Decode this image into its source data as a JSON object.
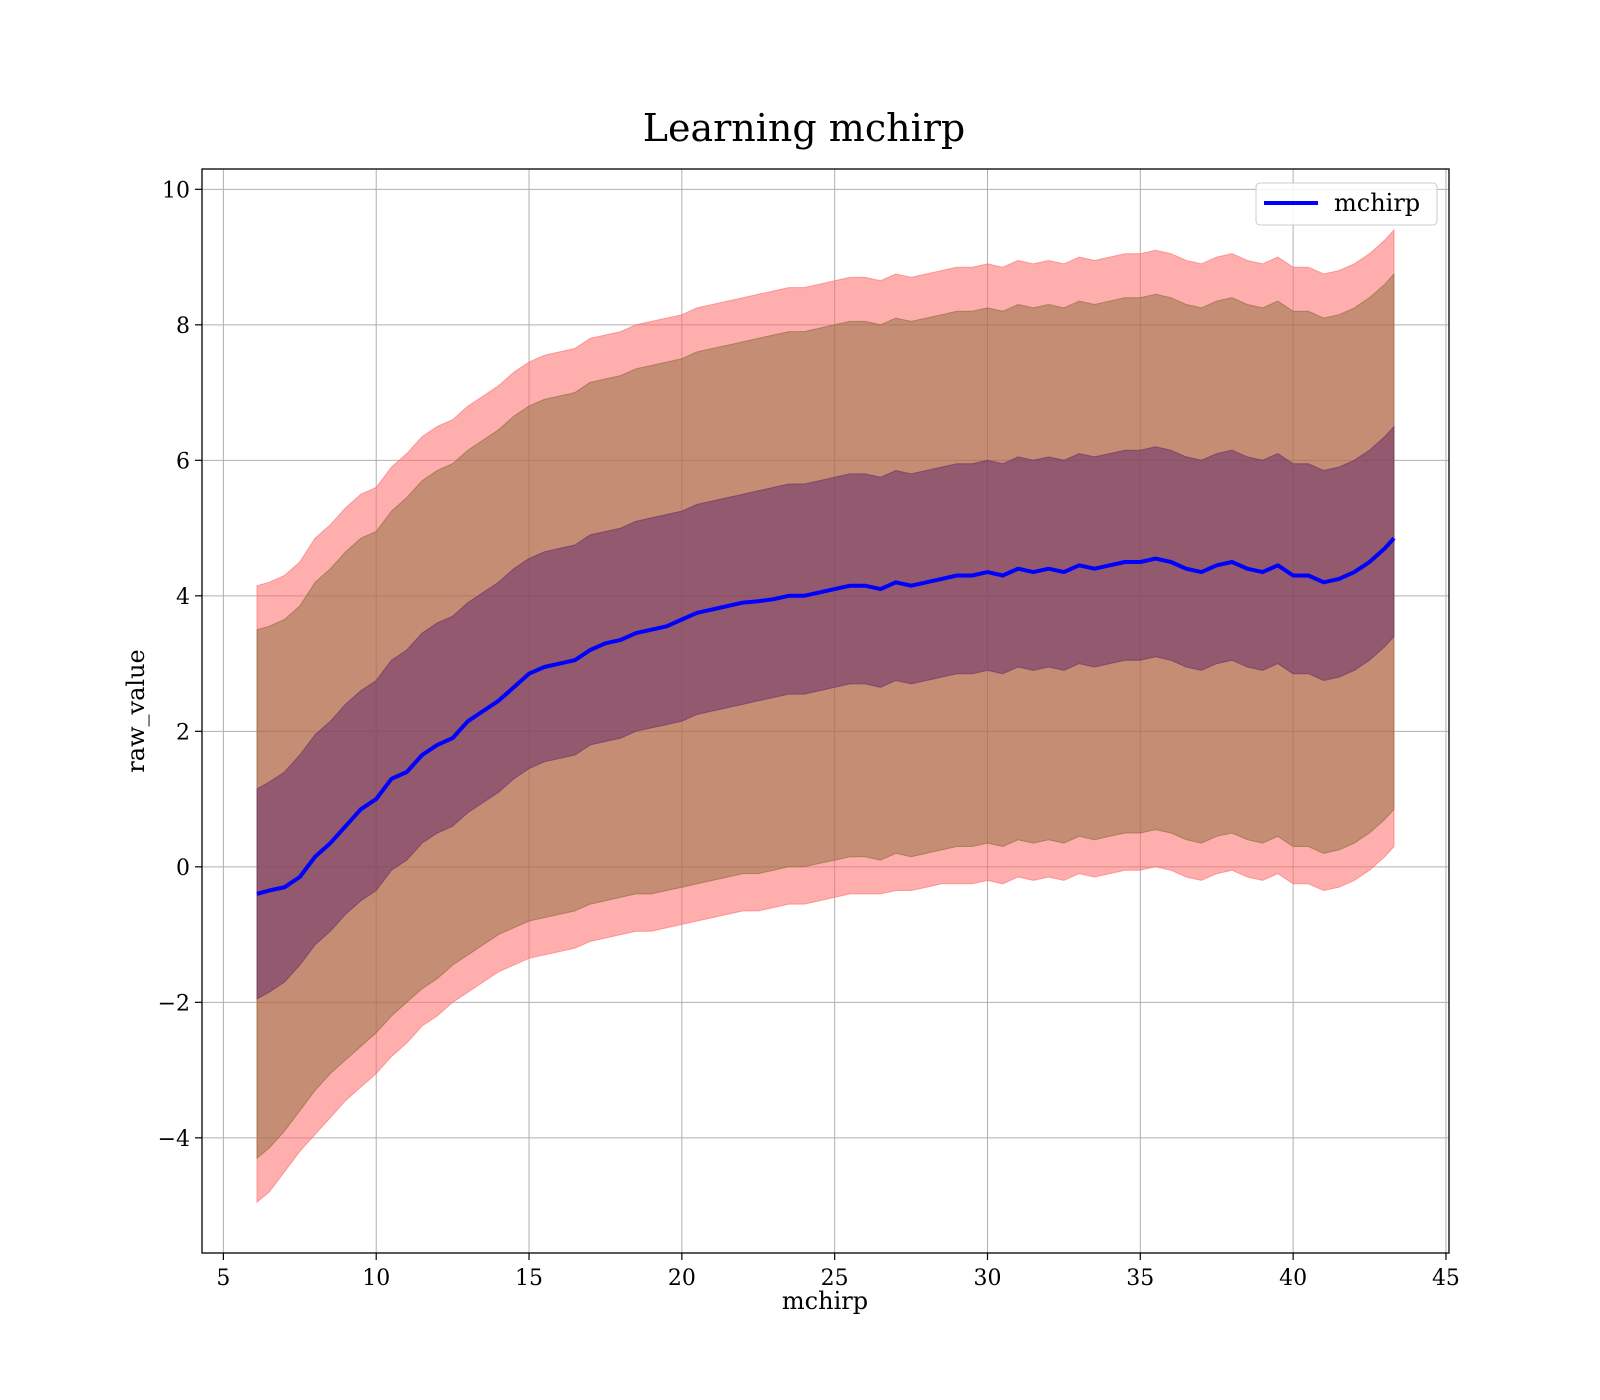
{
  "chart_data": {
    "type": "line",
    "title": "Learning mchirp",
    "xlabel": "mchirp",
    "ylabel": "raw_value",
    "xlim": [
      4.3,
      45.1
    ],
    "ylim": [
      -5.7,
      10.3
    ],
    "xticks": [
      5,
      10,
      15,
      20,
      25,
      30,
      35,
      40,
      45
    ],
    "xtick_labels": [
      "5",
      "10",
      "15",
      "20",
      "25",
      "30",
      "35",
      "40",
      "45"
    ],
    "yticks": [
      -4,
      -2,
      0,
      2,
      4,
      6,
      8,
      10
    ],
    "ytick_labels": [
      "−4",
      "−2",
      "0",
      "2",
      "4",
      "6",
      "8",
      "10"
    ],
    "grid": true,
    "legend_position": "upper right",
    "legend_entries": [
      "mchirp"
    ],
    "colors": {
      "line": "#0000ff",
      "band_outer": "#ff6b6b",
      "band_middle": "#8b6b3a",
      "band_inner": "#6a2f6a",
      "grid": "#b0b0b0"
    },
    "series": [
      {
        "name": "mchirp",
        "x": [
          6.1,
          6.5,
          7.0,
          7.5,
          8.0,
          8.5,
          9.0,
          9.5,
          10.0,
          10.5,
          11.0,
          11.5,
          12.0,
          12.5,
          13.0,
          13.5,
          14.0,
          14.5,
          15.0,
          15.5,
          16.0,
          16.5,
          17.0,
          17.5,
          18.0,
          18.5,
          19.0,
          19.5,
          20.0,
          20.5,
          21.0,
          21.5,
          22.0,
          22.5,
          23.0,
          23.5,
          24.0,
          24.5,
          25.0,
          25.5,
          26.0,
          26.5,
          27.0,
          27.5,
          28.0,
          28.5,
          29.0,
          29.5,
          30.0,
          30.5,
          31.0,
          31.5,
          32.0,
          32.5,
          33.0,
          33.5,
          34.0,
          34.5,
          35.0,
          35.5,
          36.0,
          36.5,
          37.0,
          37.5,
          38.0,
          38.5,
          39.0,
          39.5,
          40.0,
          40.5,
          41.0,
          41.5,
          42.0,
          42.5,
          43.0,
          43.3
        ],
        "y": [
          -0.4,
          -0.35,
          -0.3,
          -0.15,
          0.15,
          0.35,
          0.6,
          0.85,
          1.0,
          1.3,
          1.4,
          1.65,
          1.8,
          1.9,
          2.15,
          2.3,
          2.45,
          2.65,
          2.85,
          2.95,
          3.0,
          3.05,
          3.2,
          3.3,
          3.35,
          3.45,
          3.5,
          3.55,
          3.65,
          3.75,
          3.8,
          3.85,
          3.9,
          3.92,
          3.95,
          4.0,
          4.0,
          4.05,
          4.1,
          4.15,
          4.15,
          4.1,
          4.2,
          4.15,
          4.2,
          4.25,
          4.3,
          4.3,
          4.35,
          4.3,
          4.4,
          4.35,
          4.4,
          4.35,
          4.45,
          4.4,
          4.45,
          4.5,
          4.5,
          4.55,
          4.5,
          4.4,
          4.35,
          4.45,
          4.5,
          4.4,
          4.35,
          4.45,
          4.3,
          4.3,
          4.2,
          4.25,
          4.35,
          4.5,
          4.7,
          4.85
        ]
      }
    ],
    "bands": [
      {
        "sigma": "outer",
        "lower": [
          -4.95,
          -4.8,
          -4.5,
          -4.2,
          -3.95,
          -3.7,
          -3.45,
          -3.25,
          -3.05,
          -2.8,
          -2.6,
          -2.35,
          -2.2,
          -2.0,
          -1.85,
          -1.7,
          -1.55,
          -1.45,
          -1.35,
          -1.3,
          -1.25,
          -1.2,
          -1.1,
          -1.05,
          -1.0,
          -0.95,
          -0.95,
          -0.9,
          -0.85,
          -0.8,
          -0.75,
          -0.7,
          -0.65,
          -0.65,
          -0.6,
          -0.55,
          -0.55,
          -0.5,
          -0.45,
          -0.4,
          -0.4,
          -0.4,
          -0.35,
          -0.35,
          -0.3,
          -0.25,
          -0.25,
          -0.25,
          -0.2,
          -0.25,
          -0.15,
          -0.2,
          -0.15,
          -0.2,
          -0.1,
          -0.15,
          -0.1,
          -0.05,
          -0.05,
          0.0,
          -0.05,
          -0.15,
          -0.2,
          -0.1,
          -0.05,
          -0.15,
          -0.2,
          -0.1,
          -0.25,
          -0.25,
          -0.35,
          -0.3,
          -0.2,
          -0.05,
          0.15,
          0.3
        ],
        "upper": [
          4.15,
          4.2,
          4.3,
          4.5,
          4.85,
          5.05,
          5.3,
          5.5,
          5.6,
          5.9,
          6.1,
          6.35,
          6.5,
          6.6,
          6.8,
          6.95,
          7.1,
          7.3,
          7.45,
          7.55,
          7.6,
          7.65,
          7.8,
          7.85,
          7.9,
          8.0,
          8.05,
          8.1,
          8.15,
          8.25,
          8.3,
          8.35,
          8.4,
          8.45,
          8.5,
          8.55,
          8.55,
          8.6,
          8.65,
          8.7,
          8.7,
          8.65,
          8.75,
          8.7,
          8.75,
          8.8,
          8.85,
          8.85,
          8.9,
          8.85,
          8.95,
          8.9,
          8.95,
          8.9,
          9.0,
          8.95,
          9.0,
          9.05,
          9.05,
          9.1,
          9.05,
          8.95,
          8.9,
          9.0,
          9.05,
          8.95,
          8.9,
          9.0,
          8.85,
          8.85,
          8.75,
          8.8,
          8.9,
          9.05,
          9.25,
          9.4
        ]
      },
      {
        "sigma": "middle",
        "lower": [
          -4.3,
          -4.15,
          -3.9,
          -3.6,
          -3.3,
          -3.05,
          -2.85,
          -2.65,
          -2.45,
          -2.2,
          -2.0,
          -1.8,
          -1.65,
          -1.45,
          -1.3,
          -1.15,
          -1.0,
          -0.9,
          -0.8,
          -0.75,
          -0.7,
          -0.65,
          -0.55,
          -0.5,
          -0.45,
          -0.4,
          -0.4,
          -0.35,
          -0.3,
          -0.25,
          -0.2,
          -0.15,
          -0.1,
          -0.1,
          -0.05,
          0.0,
          0.0,
          0.05,
          0.1,
          0.15,
          0.15,
          0.1,
          0.2,
          0.15,
          0.2,
          0.25,
          0.3,
          0.3,
          0.35,
          0.3,
          0.4,
          0.35,
          0.4,
          0.35,
          0.45,
          0.4,
          0.45,
          0.5,
          0.5,
          0.55,
          0.5,
          0.4,
          0.35,
          0.45,
          0.5,
          0.4,
          0.35,
          0.45,
          0.3,
          0.3,
          0.2,
          0.25,
          0.35,
          0.5,
          0.7,
          0.85
        ],
        "upper": [
          3.5,
          3.55,
          3.65,
          3.85,
          4.2,
          4.4,
          4.65,
          4.85,
          4.95,
          5.25,
          5.45,
          5.7,
          5.85,
          5.95,
          6.15,
          6.3,
          6.45,
          6.65,
          6.8,
          6.9,
          6.95,
          7.0,
          7.15,
          7.2,
          7.25,
          7.35,
          7.4,
          7.45,
          7.5,
          7.6,
          7.65,
          7.7,
          7.75,
          7.8,
          7.85,
          7.9,
          7.9,
          7.95,
          8.0,
          8.05,
          8.05,
          8.0,
          8.1,
          8.05,
          8.1,
          8.15,
          8.2,
          8.2,
          8.25,
          8.2,
          8.3,
          8.25,
          8.3,
          8.25,
          8.35,
          8.3,
          8.35,
          8.4,
          8.4,
          8.45,
          8.4,
          8.3,
          8.25,
          8.35,
          8.4,
          8.3,
          8.25,
          8.35,
          8.2,
          8.2,
          8.1,
          8.15,
          8.25,
          8.4,
          8.6,
          8.75
        ]
      },
      {
        "sigma": "inner",
        "lower": [
          -1.95,
          -1.85,
          -1.7,
          -1.45,
          -1.15,
          -0.95,
          -0.7,
          -0.5,
          -0.35,
          -0.05,
          0.1,
          0.35,
          0.5,
          0.6,
          0.8,
          0.95,
          1.1,
          1.3,
          1.45,
          1.55,
          1.6,
          1.65,
          1.8,
          1.85,
          1.9,
          2.0,
          2.05,
          2.1,
          2.15,
          2.25,
          2.3,
          2.35,
          2.4,
          2.45,
          2.5,
          2.55,
          2.55,
          2.6,
          2.65,
          2.7,
          2.7,
          2.65,
          2.75,
          2.7,
          2.75,
          2.8,
          2.85,
          2.85,
          2.9,
          2.85,
          2.95,
          2.9,
          2.95,
          2.9,
          3.0,
          2.95,
          3.0,
          3.05,
          3.05,
          3.1,
          3.05,
          2.95,
          2.9,
          3.0,
          3.05,
          2.95,
          2.9,
          3.0,
          2.85,
          2.85,
          2.75,
          2.8,
          2.9,
          3.05,
          3.25,
          3.4
        ],
        "upper": [
          1.15,
          1.25,
          1.4,
          1.65,
          1.95,
          2.15,
          2.4,
          2.6,
          2.75,
          3.05,
          3.2,
          3.45,
          3.6,
          3.7,
          3.9,
          4.05,
          4.2,
          4.4,
          4.55,
          4.65,
          4.7,
          4.75,
          4.9,
          4.95,
          5.0,
          5.1,
          5.15,
          5.2,
          5.25,
          5.35,
          5.4,
          5.45,
          5.5,
          5.55,
          5.6,
          5.65,
          5.65,
          5.7,
          5.75,
          5.8,
          5.8,
          5.75,
          5.85,
          5.8,
          5.85,
          5.9,
          5.95,
          5.95,
          6.0,
          5.95,
          6.05,
          6.0,
          6.05,
          6.0,
          6.1,
          6.05,
          6.1,
          6.15,
          6.15,
          6.2,
          6.15,
          6.05,
          6.0,
          6.1,
          6.15,
          6.05,
          6.0,
          6.1,
          5.95,
          5.95,
          5.85,
          5.9,
          6.0,
          6.15,
          6.35,
          6.5
        ]
      }
    ]
  }
}
